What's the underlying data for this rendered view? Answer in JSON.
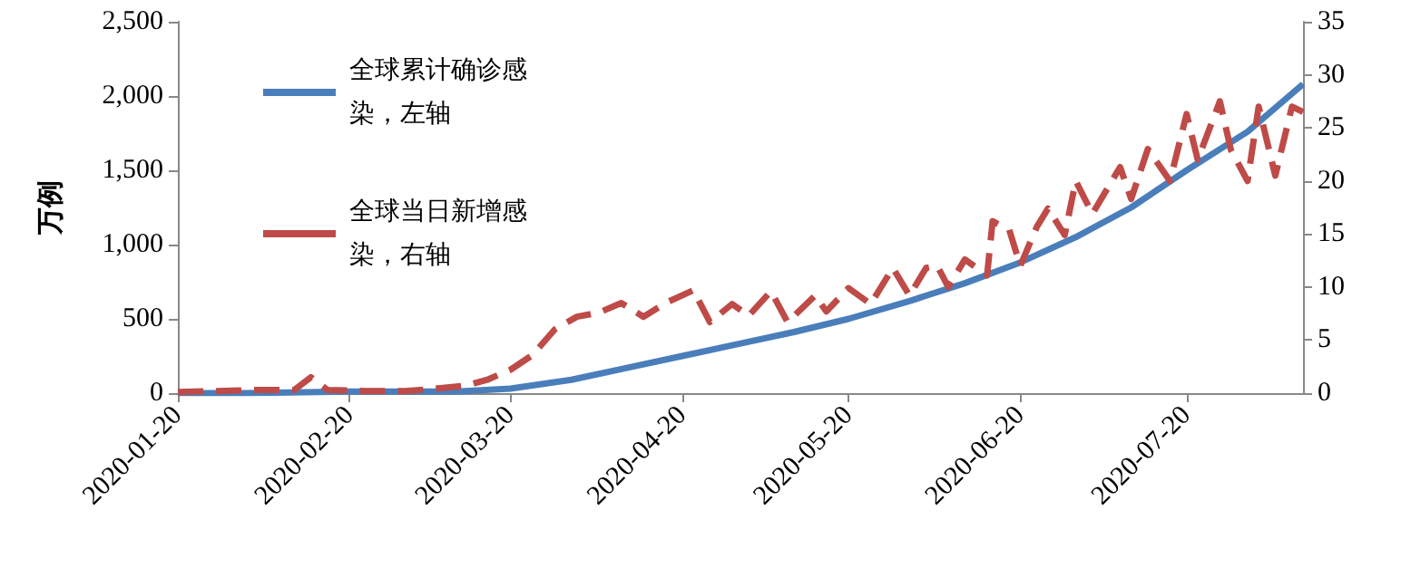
{
  "chart_data": {
    "type": "line",
    "ylabel": "万例",
    "xlim": [
      "2020-01-20",
      "2020-08-10"
    ],
    "xticks": [
      "2020-01-20",
      "2020-02-20",
      "2020-03-20",
      "2020-04-20",
      "2020-05-20",
      "2020-06-20",
      "2020-07-20"
    ],
    "ylim": [
      0,
      2500
    ],
    "yticks": [
      0,
      {
        "value": 500,
        "label": "500"
      },
      {
        "value": 1000,
        "label": "1,000"
      },
      {
        "value": 1500,
        "label": "1,500"
      },
      {
        "value": 2000,
        "label": "2,000"
      },
      {
        "value": 2500,
        "label": "2,500"
      }
    ],
    "y2lim": [
      0,
      35
    ],
    "y2ticks": [
      0,
      5,
      10,
      15,
      20,
      25,
      30,
      35
    ],
    "grid": false,
    "legend": "top left",
    "marker": "none",
    "series": [
      {
        "name": "全球累计确诊感染，左轴",
        "color": "#4a7ebb",
        "line_style": "solid",
        "x": [
          "2020-01-20",
          "2020-02-01",
          "2020-02-20",
          "2020-03-01",
          "2020-03-10",
          "2020-03-20",
          "2020-03-31",
          "2020-04-10",
          "2020-04-20",
          "2020-04-30",
          "2020-05-10",
          "2020-05-20",
          "2020-05-31",
          "2020-06-10",
          "2020-06-20",
          "2020-06-30",
          "2020-07-10",
          "2020-07-20",
          "2020-07-31",
          "2020-08-10"
        ],
        "values": [
          0,
          0,
          10,
          10,
          10,
          30,
          90,
          170,
          250,
          330,
          410,
          500,
          620,
          740,
          880,
          1050,
          1250,
          1500,
          1760,
          2080
        ]
      },
      {
        "name": "全球当日新增感染，右轴",
        "color": "#be4b48",
        "line_style": "dashed",
        "axis": "y2",
        "x": [
          "2020-01-20",
          "2020-01-27",
          "2020-02-03",
          "2020-02-10",
          "2020-02-13",
          "2020-02-16",
          "2020-02-23",
          "2020-03-01",
          "2020-03-06",
          "2020-03-12",
          "2020-03-16",
          "2020-03-20",
          "2020-03-24",
          "2020-03-28",
          "2020-04-01",
          "2020-04-05",
          "2020-04-09",
          "2020-04-13",
          "2020-04-17",
          "2020-04-22",
          "2020-04-25",
          "2020-04-29",
          "2020-05-02",
          "2020-05-06",
          "2020-05-09",
          "2020-05-14",
          "2020-05-16",
          "2020-05-20",
          "2020-05-24",
          "2020-05-28",
          "2020-05-31",
          "2020-06-03",
          "2020-06-05",
          "2020-06-07",
          "2020-06-10",
          "2020-06-14",
          "2020-06-15",
          "2020-06-18",
          "2020-06-20",
          "2020-06-23",
          "2020-06-25",
          "2020-06-28",
          "2020-06-30",
          "2020-07-03",
          "2020-07-08",
          "2020-07-10",
          "2020-07-13",
          "2020-07-17",
          "2020-07-20",
          "2020-07-22",
          "2020-07-26",
          "2020-07-28",
          "2020-07-31",
          "2020-08-02",
          "2020-08-05",
          "2020-08-08",
          "2020-08-10"
        ],
        "values": [
          0.1,
          0.2,
          0.3,
          0.3,
          1.5,
          0.3,
          0.2,
          0.2,
          0.4,
          0.7,
          1.3,
          2.2,
          3.6,
          6,
          7.2,
          7.6,
          8.5,
          7.2,
          8.5,
          9.7,
          6.7,
          8.4,
          7.3,
          9.6,
          6.7,
          9.2,
          7.7,
          9.9,
          8.4,
          11.8,
          9.2,
          11.8,
          12,
          10,
          12.6,
          11.1,
          16.2,
          15.4,
          12,
          15.7,
          17.4,
          14.9,
          20,
          16.9,
          21.3,
          18.3,
          23,
          20,
          26.3,
          22,
          27.5,
          22.9,
          20,
          27,
          20.5,
          27,
          26.5
        ]
      }
    ]
  }
}
